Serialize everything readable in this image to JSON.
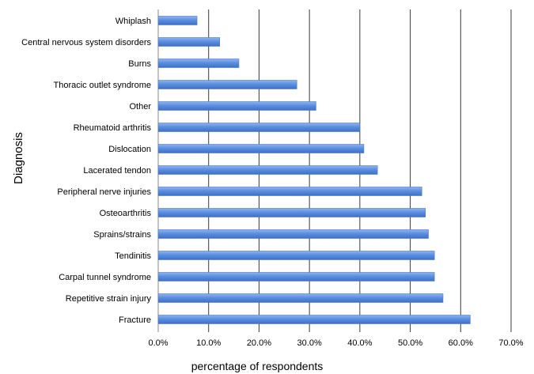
{
  "chart_data": {
    "type": "bar",
    "orientation": "horizontal",
    "title": "",
    "xlabel": "percentage of respondents",
    "ylabel": "Diagnosis",
    "xlim": [
      0,
      70
    ],
    "x_ticks": [
      "0.0%",
      "10.0%",
      "20.0%",
      "30.0%",
      "40.0%",
      "50.0%",
      "60.0%",
      "70.0%"
    ],
    "grid": "vertical",
    "legend": "none",
    "bar_color": "#5b8fe0",
    "categories": [
      "Whiplash",
      "Central nervous system disorders",
      "Burns",
      "Thoracic outlet syndrome",
      "Other",
      "Rheumatoid arthritis",
      "Dislocation",
      "Lacerated tendon",
      "Peripheral nerve injuries",
      "Osteoarthritis",
      "Sprains/strains",
      "Tendinitis",
      "Carpal tunnel syndrome",
      "Repetitive strain injury",
      "Fracture"
    ],
    "values": [
      7.7,
      12.2,
      16.0,
      27.5,
      31.3,
      40.0,
      40.8,
      43.5,
      52.3,
      53.0,
      53.6,
      54.8,
      54.8,
      56.5,
      61.9
    ]
  }
}
